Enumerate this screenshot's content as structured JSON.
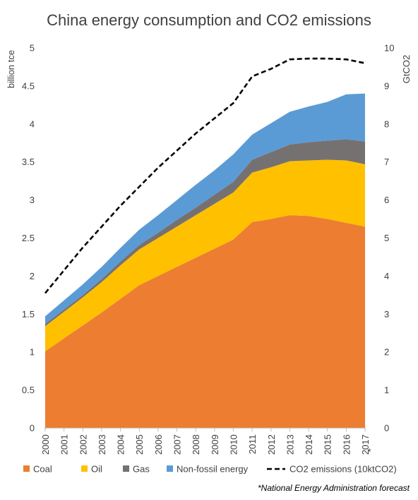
{
  "chart_data": {
    "type": "area",
    "title": "China energy consumption and CO2 emissions",
    "ylabel_left": "billion tce",
    "ylabel_right": "GtCO2",
    "x": [
      "2000",
      "2001",
      "2002",
      "2003",
      "2004",
      "2005",
      "2006",
      "2007",
      "2008",
      "2009",
      "2010",
      "2011",
      "2012",
      "2013",
      "2014",
      "2015",
      "2016",
      "2017"
    ],
    "x_marked": "2017",
    "ylim_left": [
      0,
      5
    ],
    "yticks_left": [
      "0",
      "0.5",
      "1",
      "1.5",
      "2",
      "2.5",
      "3",
      "3.5",
      "4",
      "4.5",
      "5"
    ],
    "ylim_right": [
      0,
      10
    ],
    "yticks_right": [
      "0",
      "1",
      "2",
      "3",
      "4",
      "5",
      "6",
      "7",
      "8",
      "9",
      "10"
    ],
    "grid": false,
    "stacked": true,
    "legend_position": "bottom",
    "series": [
      {
        "name": "Coal",
        "color": "#ED7D31",
        "axis": "left",
        "values": [
          1.01,
          1.18,
          1.35,
          1.52,
          1.7,
          1.88,
          2.0,
          2.12,
          2.24,
          2.36,
          2.48,
          2.71,
          2.75,
          2.8,
          2.79,
          2.75,
          2.7,
          2.65
        ]
      },
      {
        "name": "Oil",
        "color": "#FFC000",
        "axis": "left",
        "values": [
          0.33,
          0.35,
          0.37,
          0.4,
          0.44,
          0.47,
          0.5,
          0.53,
          0.56,
          0.59,
          0.62,
          0.65,
          0.68,
          0.71,
          0.73,
          0.78,
          0.82,
          0.82
        ]
      },
      {
        "name": "Gas",
        "color": "#767171",
        "axis": "left",
        "values": [
          0.03,
          0.03,
          0.03,
          0.04,
          0.05,
          0.06,
          0.07,
          0.09,
          0.1,
          0.12,
          0.14,
          0.17,
          0.2,
          0.22,
          0.24,
          0.25,
          0.28,
          0.3
        ]
      },
      {
        "name": "Non-fossil energy",
        "color": "#5B9BD5",
        "axis": "left",
        "values": [
          0.1,
          0.12,
          0.14,
          0.16,
          0.18,
          0.2,
          0.23,
          0.26,
          0.3,
          0.32,
          0.36,
          0.33,
          0.38,
          0.43,
          0.47,
          0.51,
          0.59,
          0.63
        ]
      },
      {
        "name": "CO2 emissions (10ktCO2)",
        "color": "#000000",
        "axis": "right",
        "style": "dashed",
        "values": [
          3.55,
          4.15,
          4.75,
          5.3,
          5.85,
          6.35,
          6.85,
          7.3,
          7.75,
          8.15,
          8.55,
          9.25,
          9.45,
          9.7,
          9.72,
          9.72,
          9.7,
          9.6
        ]
      }
    ],
    "footnote": "*National Energy Administration forecast"
  }
}
